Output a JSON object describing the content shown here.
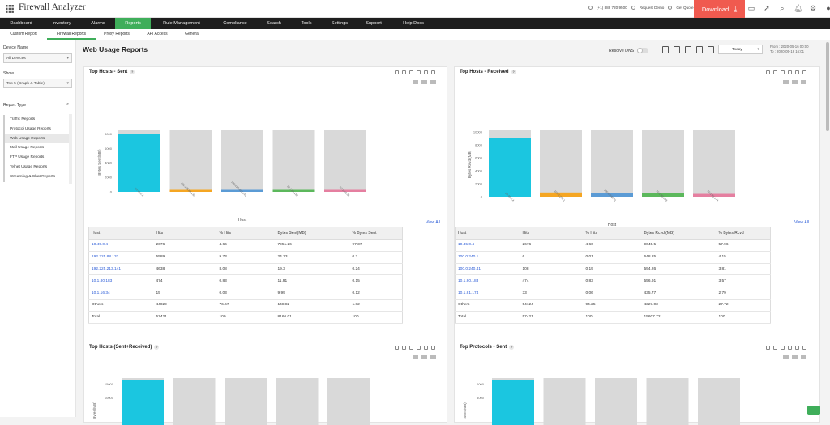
{
  "app": {
    "title": "Firewall Analyzer",
    "phone": "(+1) 888 720 9500",
    "request_demo": "Request Demo",
    "get_quote": "Get Quote",
    "download": "Download"
  },
  "nav": [
    "Dashboard",
    "Inventory",
    "Alarms",
    "Reports",
    "Rule Management",
    "Compliance",
    "Search",
    "Tools",
    "Settings",
    "Support",
    "Help Docs"
  ],
  "nav_active": "Reports",
  "subnav": [
    "Custom Report",
    "Firewall Reports",
    "Proxy Reports",
    "API Access",
    "General"
  ],
  "subnav_active": "Firewall Reports",
  "sidebar": {
    "device_label": "Device Name",
    "device_value": "All Devices",
    "show_label": "Show",
    "show_value": "Top 5 (Graph & Table)",
    "report_type_label": "Report Type",
    "report_types": [
      "Traffic Reports",
      "Protocol Usage Reports",
      "Web Usage Reports",
      "Mail Usage Reports",
      "FTP Usage Reports",
      "Telnet Usage Reports",
      "Streaming & Chat Reports"
    ],
    "active_report": "Web Usage Reports"
  },
  "page": {
    "title": "Web Usage Reports",
    "resolve_dns": "Resolve DNS",
    "period": "Today",
    "from": "From : 2020-05-16 00:00",
    "to": "To : 2020-05-16 16:01"
  },
  "panels": {
    "sent": {
      "title": "Top Hosts - Sent",
      "ylabel": "Bytes Sent(MB)",
      "xlabel": "Host",
      "view_all": "View All",
      "yticks": [
        "8000",
        "6000",
        "4000",
        "2000",
        "0"
      ],
      "columns": [
        "Host",
        "Hits",
        "% Hits",
        "Bytes Sent(MB)",
        "% Bytes Sent"
      ],
      "rows": [
        [
          "10.45.0.4",
          "2676",
          "4.66",
          "7951.26",
          "97.37"
        ],
        [
          "192.225.88.132",
          "5589",
          "9.73",
          "24.73",
          "0.3"
        ],
        [
          "192.225.213.141",
          "4638",
          "8.08",
          "19.3",
          "0.24"
        ],
        [
          "10.1.80.183",
          "474",
          "0.83",
          "11.91",
          "0.15"
        ],
        [
          "10.1.16.34",
          "15",
          "0.03",
          "9.99",
          "0.12"
        ],
        [
          "Others",
          "44029",
          "76.67",
          "148.82",
          "1.82"
        ],
        [
          "Total",
          "57421",
          "100",
          "8166.01",
          "100"
        ]
      ],
      "legend": [
        "10.45.0.4",
        "192.225.88.132",
        "192.225.213.141",
        "10.1.80.183",
        "10.1.16.34"
      ]
    },
    "received": {
      "title": "Top Hosts - Received",
      "ylabel": "Bytes Rcvd (MB)",
      "xlabel": "Host",
      "view_all": "View All",
      "yticks": [
        "10000",
        "8000",
        "6000",
        "4000",
        "2000",
        "0"
      ],
      "columns": [
        "Host",
        "Hits",
        "% Hits",
        "Bytes Rcvd (MB)",
        "% Bytes Rcvd"
      ],
      "rows": [
        [
          "10.45.0.4",
          "2676",
          "4.66",
          "9045.5",
          "57.96"
        ],
        [
          "100.0.240.1",
          "6",
          "0.01",
          "648.25",
          "4.15"
        ],
        [
          "100.0.240.41",
          "108",
          "0.19",
          "594.26",
          "3.81"
        ],
        [
          "10.1.80.183",
          "474",
          "0.83",
          "556.91",
          "3.57"
        ],
        [
          "10.1.81.174",
          "33",
          "0.06",
          "435.77",
          "2.79"
        ],
        [
          "Others",
          "54124",
          "94.25",
          "4327.03",
          "27.72"
        ],
        [
          "Total",
          "57421",
          "100",
          "15607.72",
          "100"
        ]
      ],
      "legend": [
        "10.45.0.4",
        "100.0.240.1",
        "100.0.240.41",
        "10.1.80.183",
        "10.1.81.174"
      ]
    },
    "combined": {
      "title": "Top Hosts (Sent+Received)",
      "ylabel": "Bytes(MB)",
      "yticks": [
        "15000",
        "10000"
      ]
    },
    "protocols": {
      "title": "Top Protocols - Sent",
      "ylabel": "Sent(MB)",
      "yticks": [
        "6000",
        "4000"
      ]
    }
  },
  "colors": [
    "#1bc6e0",
    "#f5a623",
    "#5b9bd5",
    "#5cb85c",
    "#e57fa0"
  ],
  "chart_data": [
    {
      "type": "bar",
      "title": "Top Hosts - Sent",
      "xlabel": "Host",
      "ylabel": "Bytes Sent(MB)",
      "categories": [
        "10.45.0.4",
        "192.225.88.132",
        "192.225.213.141",
        "10.1.80.183",
        "10.1.16.34"
      ],
      "values": [
        7951.26,
        24.73,
        19.3,
        11.91,
        9.99
      ],
      "ylim": [
        0,
        8166.01
      ]
    },
    {
      "type": "bar",
      "title": "Top Hosts - Received",
      "xlabel": "Host",
      "ylabel": "Bytes Rcvd (MB)",
      "categories": [
        "10.45.0.4",
        "100.0.240.1",
        "100.0.240.41",
        "10.1.80.183",
        "10.1.81.174"
      ],
      "values": [
        9045.5,
        648.25,
        594.26,
        556.91,
        435.77
      ],
      "ylim": [
        0,
        10000
      ]
    }
  ]
}
